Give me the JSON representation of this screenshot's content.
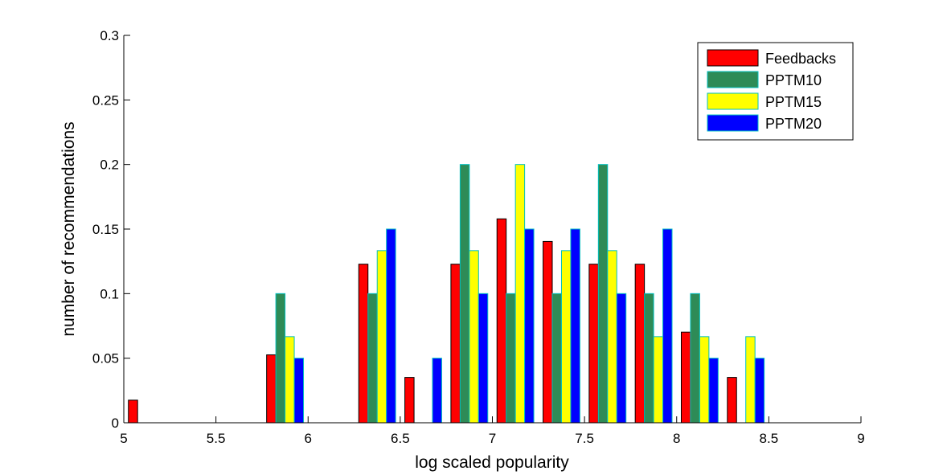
{
  "chart_data": {
    "type": "bar",
    "xlabel": "log scaled popularity",
    "ylabel": "number of recommendations",
    "xlim": [
      5,
      9
    ],
    "ylim": [
      0,
      0.3
    ],
    "x_ticks": [
      "5",
      "5.5",
      "6",
      "6.5",
      "7",
      "7.5",
      "8",
      "8.5",
      "9"
    ],
    "y_ticks": [
      "0",
      "0.05",
      "0.1",
      "0.15",
      "0.2",
      "0.25",
      "0.3"
    ],
    "grid": false,
    "legend_position": "top-right",
    "x": [
      5.125,
      5.375,
      5.625,
      5.875,
      6.125,
      6.375,
      6.625,
      6.875,
      7.125,
      7.375,
      7.625,
      7.875,
      8.125,
      8.375,
      8.625,
      8.875
    ],
    "series": [
      {
        "name": "Feedbacks",
        "color": "#ff0000",
        "values": [
          0.0175,
          0,
          0,
          0.0526,
          0,
          0.1228,
          0.0351,
          0.1228,
          0.1579,
          0.1404,
          0.1228,
          0.1228,
          0.0702,
          0.0351,
          0,
          0
        ]
      },
      {
        "name": "PPTM10",
        "color": "#2e8b57",
        "values": [
          0,
          0,
          0,
          0.1,
          0,
          0.1,
          0,
          0.2,
          0.1,
          0.1,
          0.2,
          0.1,
          0.1,
          0,
          0,
          0
        ]
      },
      {
        "name": "PPTM15",
        "color": "#ffff00",
        "values": [
          0,
          0,
          0,
          0.0667,
          0,
          0.1333,
          0,
          0.1333,
          0.2,
          0.1333,
          0.1333,
          0.0667,
          0.0667,
          0.0667,
          0,
          0
        ]
      },
      {
        "name": "PPTM20",
        "color": "#0000ff",
        "values": [
          0,
          0,
          0,
          0.05,
          0,
          0.15,
          0.05,
          0.1,
          0.15,
          0.15,
          0.1,
          0.15,
          0.05,
          0.05,
          0,
          0
        ]
      }
    ]
  }
}
